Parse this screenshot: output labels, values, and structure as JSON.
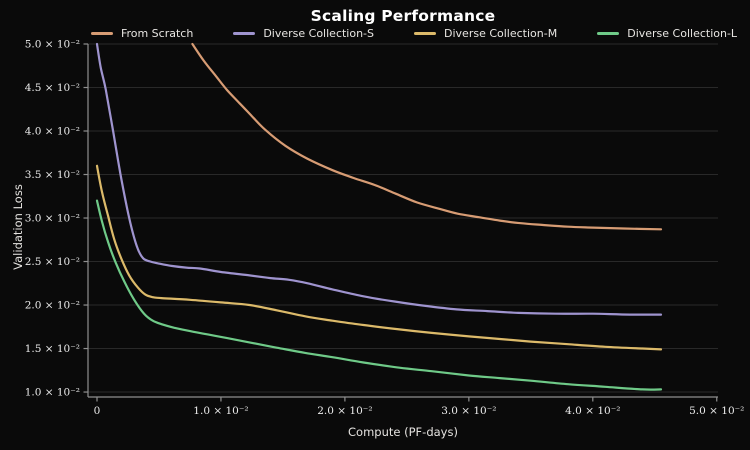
{
  "chart": {
    "title": "Scaling Performance",
    "x_axis_label": "Compute (PF-days)",
    "y_axis_label": "Validation Loss"
  },
  "chart_data": {
    "type": "line",
    "title": "Scaling Performance",
    "xlabel": "Compute (PF-days)",
    "ylabel": "Validation Loss",
    "xlim": [
      -0.000726,
      0.0501
    ],
    "ylim": [
      0.00943,
      0.05
    ],
    "x_ticks": [
      0,
      0.01,
      0.02,
      0.03,
      0.04,
      0.05
    ],
    "x_tick_labels": [
      "0",
      "1.0 × 10⁻²",
      "2.0 × 10⁻²",
      "3.0 × 10⁻²",
      "4.0 × 10⁻²",
      "5.0 × 10⁻²"
    ],
    "y_ticks": [
      0.01,
      0.015,
      0.02,
      0.025,
      0.03,
      0.035,
      0.04,
      0.045,
      0.05
    ],
    "y_tick_labels": [
      "1.0 × 10⁻²",
      "1.5 × 10⁻²",
      "2.0 × 10⁻²",
      "2.5 × 10⁻²",
      "3.0 × 10⁻²",
      "3.5 × 10⁻²",
      "4.0 × 10⁻²",
      "4.5 × 10⁻²",
      "5.0 × 10⁻²"
    ],
    "grid": "horizontal-only",
    "legend_position": "top-center",
    "background_color": "#0a0a0a",
    "gridline_color": "rgba(255,255,255,0.13)",
    "spine_color": "#8f8f8f",
    "tick_text_color": "#ececec",
    "series": [
      {
        "name": "From Scratch",
        "color": "#d79c74",
        "x": [
          0.0077,
          0.0086,
          0.0096,
          0.0105,
          0.0115,
          0.0125,
          0.0136,
          0.0152,
          0.017,
          0.019,
          0.0207,
          0.0224,
          0.0241,
          0.0258,
          0.0275,
          0.0291,
          0.0308,
          0.0325,
          0.0342,
          0.036,
          0.038,
          0.04,
          0.0425,
          0.0455
        ],
        "y": [
          0.05,
          0.0481,
          0.0463,
          0.0447,
          0.0432,
          0.0417,
          0.0401,
          0.0383,
          0.0368,
          0.0355,
          0.0346,
          0.0338,
          0.0328,
          0.0318,
          0.0311,
          0.0305,
          0.0301,
          0.0297,
          0.0294,
          0.0292,
          0.029,
          0.0289,
          0.0288,
          0.0287
        ]
      },
      {
        "name": "Diverse Collection-S",
        "color": "#9f94cf",
        "x": [
          0,
          0.0003,
          0.0007,
          0.0013,
          0.0019,
          0.0026,
          0.0032,
          0.0037,
          0.0043,
          0.0049,
          0.006,
          0.0072,
          0.0083,
          0.01,
          0.0123,
          0.014,
          0.0155,
          0.017,
          0.019,
          0.0215,
          0.024,
          0.0265,
          0.029,
          0.0315,
          0.034,
          0.037,
          0.04,
          0.043,
          0.0455
        ],
        "y": [
          0.05,
          0.0473,
          0.0448,
          0.04,
          0.035,
          0.03,
          0.0268,
          0.0254,
          0.025,
          0.0248,
          0.0245,
          0.0243,
          0.0242,
          0.0238,
          0.0234,
          0.0231,
          0.0229,
          0.0225,
          0.0218,
          0.021,
          0.0204,
          0.0199,
          0.0195,
          0.0193,
          0.0191,
          0.019,
          0.019,
          0.0189,
          0.0189
        ]
      },
      {
        "name": "Diverse Collection-M",
        "color": "#dcba6a",
        "x": [
          0,
          0.0004,
          0.0009,
          0.0014,
          0.002,
          0.0026,
          0.0033,
          0.0039,
          0.0045,
          0.0052,
          0.0075,
          0.01,
          0.0123,
          0.0145,
          0.0168,
          0.019,
          0.0215,
          0.0244,
          0.027,
          0.03,
          0.0325,
          0.035,
          0.038,
          0.041,
          0.044,
          0.0455
        ],
        "y": [
          0.036,
          0.033,
          0.0302,
          0.0275,
          0.0252,
          0.0234,
          0.022,
          0.0212,
          0.0209,
          0.0208,
          0.0206,
          0.0203,
          0.02,
          0.0194,
          0.0187,
          0.0182,
          0.0177,
          0.0172,
          0.0168,
          0.0164,
          0.0161,
          0.0158,
          0.0155,
          0.0152,
          0.015,
          0.0149
        ]
      },
      {
        "name": "Diverse Collection-L",
        "color": "#6fca88",
        "x": [
          0,
          0.0004,
          0.0009,
          0.0015,
          0.0022,
          0.003,
          0.0038,
          0.0045,
          0.0052,
          0.0062,
          0.0075,
          0.009,
          0.0105,
          0.0123,
          0.0145,
          0.0168,
          0.019,
          0.0215,
          0.0244,
          0.027,
          0.03,
          0.0325,
          0.035,
          0.038,
          0.041,
          0.044,
          0.0455
        ],
        "y": [
          0.032,
          0.0296,
          0.0272,
          0.0249,
          0.0227,
          0.0206,
          0.019,
          0.0182,
          0.0178,
          0.0174,
          0.017,
          0.0166,
          0.0162,
          0.0157,
          0.0151,
          0.0145,
          0.014,
          0.0134,
          0.0128,
          0.0124,
          0.0119,
          0.0116,
          0.0113,
          0.0109,
          0.0106,
          0.0103,
          0.0103
        ]
      }
    ]
  }
}
